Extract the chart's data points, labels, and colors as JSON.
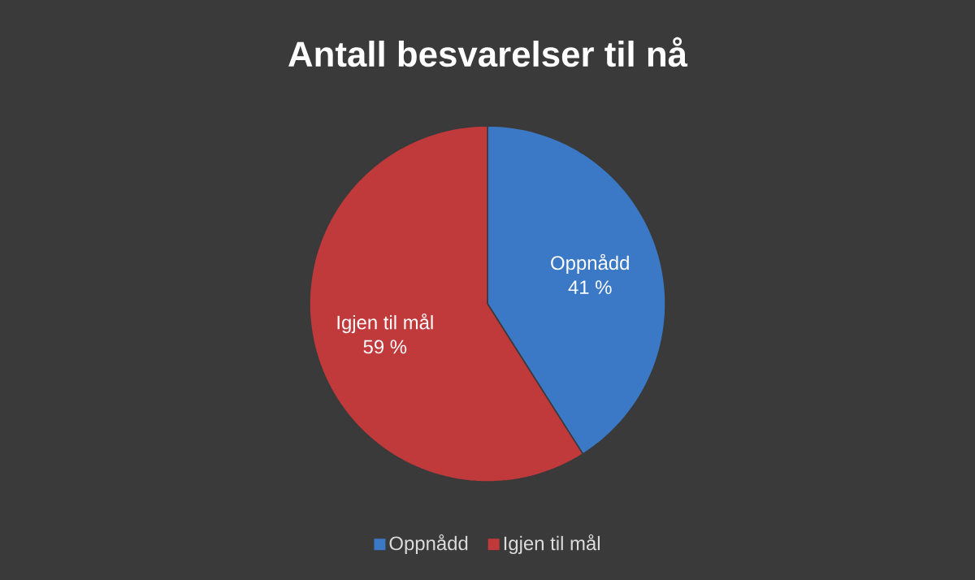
{
  "chart_data": {
    "type": "pie",
    "title": "Antall besvarelser til nå",
    "categories": [
      "Oppnådd",
      "Igjen til mål"
    ],
    "values": [
      41,
      59
    ],
    "value_labels": [
      "41 %",
      "59 %"
    ],
    "colors": [
      "#3b78c6",
      "#c0393b"
    ],
    "legend": "bottom"
  }
}
